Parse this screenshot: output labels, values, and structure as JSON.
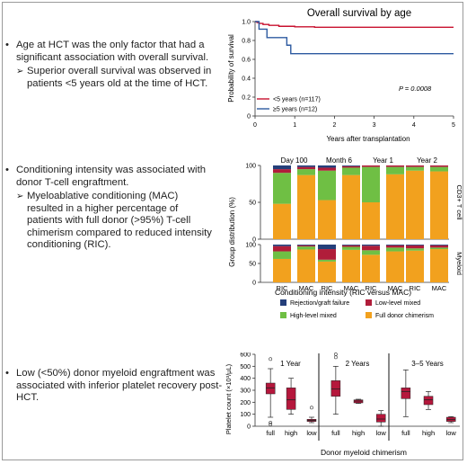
{
  "colors": {
    "red": "#c8102e",
    "blue": "#2d5aa0",
    "navy": "#243f7a",
    "crimson": "#b01d3a",
    "green": "#6fbf44",
    "orange": "#f2a11e",
    "box": "#b5173c"
  },
  "bullets": [
    {
      "text": "Age at HCT was the only factor that had a significant association with overall survival.",
      "sub": "Superior overall survival was observed in patients <5 years old at the time of HCT."
    },
    {
      "text": "Conditioning intensity was associated with donor T-cell engraftment.",
      "sub": "Myeloablative conditioning (MAC) resulted in a higher percentage of patients with full donor (>95%) T-cell chimerism compared to reduced intensity conditioning (RIC)."
    },
    {
      "text": "Low (<50%) donor myeloid engraftment was associated with inferior platelet recovery post-HCT.",
      "sub": ""
    }
  ],
  "chart_data": [
    {
      "type": "line",
      "title": "Overall survival by age",
      "xlabel": "Years after transplantation",
      "ylabel": "Probability of survival",
      "xlim": [
        0,
        5
      ],
      "ylim": [
        0,
        1.0
      ],
      "x_ticks": [
        "0",
        "1",
        "2",
        "3",
        "4",
        "5"
      ],
      "y_ticks": [
        "0",
        "0.2",
        "0.4",
        "0.6",
        "0.8",
        "1.0"
      ],
      "annotation": "P = 0.0008",
      "series": [
        {
          "name": "<5 years (n=117)",
          "color": "#c8102e",
          "points": [
            [
              0,
              1.0
            ],
            [
              0.05,
              0.99
            ],
            [
              0.1,
              0.98
            ],
            [
              0.2,
              0.97
            ],
            [
              0.35,
              0.96
            ],
            [
              0.6,
              0.95
            ],
            [
              1.0,
              0.945
            ],
            [
              1.5,
              0.94
            ],
            [
              5.0,
              0.94
            ]
          ]
        },
        {
          "name": "≥5 years (n=12)",
          "color": "#2d5aa0",
          "points": [
            [
              0,
              1.0
            ],
            [
              0.1,
              0.92
            ],
            [
              0.3,
              0.83
            ],
            [
              0.8,
              0.75
            ],
            [
              0.9,
              0.66
            ],
            [
              5.0,
              0.66
            ]
          ]
        }
      ]
    },
    {
      "type": "bar",
      "subtype": "stacked-100",
      "xlabel": "Conditioning intensity (RIC versus MAC)",
      "ylabel": "Group distribution (%)",
      "ylim": [
        0,
        100
      ],
      "y_ticks": [
        "0",
        "50",
        "100"
      ],
      "timepoints": [
        "Day 100",
        "Month 6",
        "Year 1",
        "Year 2"
      ],
      "categories": [
        "RIC",
        "MAC"
      ],
      "row_labels": [
        "CD3+ T cell",
        "Myeloid"
      ],
      "legend": [
        {
          "name": "Rejection/graft failure",
          "color": "#243f7a"
        },
        {
          "name": "Low-level mixed",
          "color": "#b01d3a"
        },
        {
          "name": "High-level mixed",
          "color": "#6fbf44"
        },
        {
          "name": "Full donor chimerism",
          "color": "#f2a11e"
        }
      ],
      "tcell": [
        {
          "tp": "Day 100",
          "RIC": [
            5,
            5,
            42,
            48
          ],
          "MAC": [
            2,
            3,
            8,
            87
          ]
        },
        {
          "tp": "Month 6",
          "RIC": [
            3,
            4,
            40,
            53
          ],
          "MAC": [
            1,
            2,
            10,
            87
          ]
        },
        {
          "tp": "Year 1",
          "RIC": [
            0,
            2,
            48,
            50
          ],
          "MAC": [
            0,
            2,
            10,
            88
          ]
        },
        {
          "tp": "Year 2",
          "RIC": [
            0,
            2,
            5,
            93
          ],
          "MAC": [
            0,
            2,
            6,
            92
          ]
        }
      ],
      "myeloid": [
        {
          "tp": "Day 100",
          "RIC": [
            4,
            14,
            20,
            62
          ],
          "MAC": [
            2,
            3,
            8,
            87
          ]
        },
        {
          "tp": "Month 6",
          "RIC": [
            12,
            28,
            5,
            55
          ],
          "MAC": [
            2,
            4,
            8,
            86
          ]
        },
        {
          "tp": "Year 1",
          "RIC": [
            3,
            12,
            12,
            73
          ],
          "MAC": [
            2,
            6,
            10,
            82
          ]
        },
        {
          "tp": "Year 2",
          "RIC": [
            2,
            8,
            6,
            84
          ],
          "MAC": [
            2,
            6,
            4,
            88
          ]
        }
      ]
    },
    {
      "type": "box",
      "xlabel": "Donor myeloid chimerism",
      "ylabel": "Platelet count (×10³/μL)",
      "ylim": [
        0,
        600
      ],
      "y_ticks": [
        "0",
        "100",
        "200",
        "300",
        "400",
        "500",
        "600"
      ],
      "panels": [
        {
          "title": "1 Year",
          "groups": [
            {
              "label": "full",
              "whislo": 75,
              "q1": 270,
              "med": 320,
              "q3": 360,
              "whishi": 480,
              "outliers": [
                560,
                30,
                15
              ]
            },
            {
              "label": "high",
              "whislo": 100,
              "q1": 140,
              "med": 220,
              "q3": 320,
              "whishi": 400,
              "outliers": []
            },
            {
              "label": "low",
              "whislo": 30,
              "q1": 40,
              "med": 48,
              "q3": 58,
              "whishi": 75,
              "outliers": [
                155
              ]
            }
          ]
        },
        {
          "title": "2 Years",
          "groups": [
            {
              "label": "full",
              "whislo": 100,
              "q1": 250,
              "med": 310,
              "q3": 380,
              "whishi": 500,
              "outliers": [
                600,
                575
              ]
            },
            {
              "label": "high",
              "whislo": 190,
              "q1": 195,
              "med": 210,
              "q3": 220,
              "whishi": 225,
              "outliers": []
            },
            {
              "label": "low",
              "whislo": 0,
              "q1": 35,
              "med": 60,
              "q3": 100,
              "whishi": 130,
              "outliers": []
            }
          ]
        },
        {
          "title": "3–5 Years",
          "groups": [
            {
              "label": "full",
              "whislo": 80,
              "q1": 230,
              "med": 290,
              "q3": 320,
              "whishi": 470,
              "outliers": []
            },
            {
              "label": "high",
              "whislo": 140,
              "q1": 180,
              "med": 220,
              "q3": 250,
              "whishi": 290,
              "outliers": []
            },
            {
              "label": "low",
              "whislo": 30,
              "q1": 40,
              "med": 55,
              "q3": 75,
              "whishi": 80,
              "outliers": []
            }
          ]
        }
      ]
    }
  ]
}
